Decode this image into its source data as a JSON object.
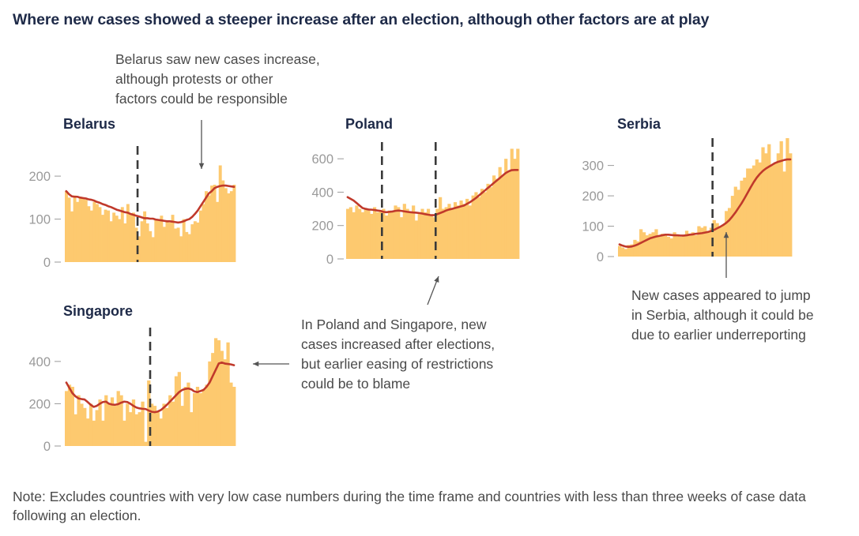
{
  "title": "Where new cases showed a steeper increase after an election, although other factors are at play",
  "note": "Note: Excludes countries with very low case numbers during the time frame and countries with less than three weeks of case data following an election.",
  "annotations": {
    "belarus": [
      "Belarus saw new cases increase,",
      "although protests or other",
      "factors could be responsible"
    ],
    "poland_singapore": [
      "In Poland and Singapore, new",
      "cases increased after elections,",
      "but earlier easing of restrictions",
      "could be to blame"
    ],
    "serbia": [
      "New cases appeared to jump",
      "in Serbia, although it could be",
      "due to earlier underreporting"
    ]
  },
  "colors": {
    "bar": "#fdc96f",
    "line": "#c0392b",
    "election_line": "#3a3a3a",
    "title": "#1e2a48",
    "text": "#4a4a4a",
    "axis": "#9a9a9a"
  },
  "chart_data": [
    {
      "type": "bar",
      "title": "Belarus",
      "ylim": [
        0,
        270
      ],
      "yticks": [
        0,
        100,
        200
      ],
      "grid": false,
      "election_index": [
        26
      ],
      "series": [
        {
          "values": [
            165,
            150,
            118,
            155,
            140,
            152,
            148,
            145,
            130,
            120,
            140,
            135,
            128,
            110,
            122,
            120,
            95,
            115,
            108,
            100,
            128,
            90,
            135,
            110,
            115,
            80,
            60,
            95,
            118,
            90,
            72,
            58,
            100,
            98,
            108,
            82,
            95,
            92,
            110,
            78,
            80,
            60,
            100,
            70,
            65,
            88,
            95,
            92,
            120,
            135,
            165,
            155,
            178,
            180,
            140,
            225,
            190,
            172,
            160,
            165,
            180
          ]
        },
        {
          "values": [
            165,
            158,
            153,
            152,
            152,
            150,
            149,
            148,
            146,
            145,
            143,
            140,
            138,
            135,
            133,
            130,
            128,
            125,
            122,
            120,
            118,
            116,
            115,
            112,
            110,
            108,
            106,
            104,
            102,
            102,
            101,
            101,
            99,
            98,
            97,
            96,
            95,
            95,
            94,
            93,
            92,
            93,
            95,
            98,
            100,
            105,
            112,
            120,
            130,
            140,
            150,
            160,
            165,
            172,
            175,
            177,
            178,
            178,
            177,
            176,
            175
          ]
        }
      ]
    },
    {
      "type": "bar",
      "title": "Poland",
      "ylim": [
        0,
        700
      ],
      "yticks": [
        0,
        200,
        400,
        600
      ],
      "grid": false,
      "election_index": [
        12,
        30
      ],
      "series": [
        {
          "values": [
            300,
            310,
            280,
            320,
            300,
            280,
            300,
            290,
            270,
            310,
            280,
            290,
            300,
            260,
            290,
            280,
            320,
            310,
            250,
            330,
            300,
            280,
            320,
            230,
            270,
            300,
            280,
            300,
            260,
            250,
            300,
            370,
            300,
            310,
            330,
            300,
            340,
            320,
            350,
            330,
            360,
            320,
            380,
            400,
            370,
            420,
            400,
            450,
            430,
            500,
            480,
            550,
            500,
            600,
            520,
            660,
            600,
            660
          ]
        },
        {
          "values": [
            370,
            360,
            350,
            335,
            320,
            305,
            300,
            296,
            295,
            293,
            290,
            288,
            282,
            280,
            282,
            284,
            288,
            290,
            288,
            285,
            282,
            280,
            278,
            277,
            275,
            272,
            268,
            265,
            262,
            262,
            268,
            275,
            282,
            290,
            296,
            300,
            305,
            310,
            315,
            320,
            330,
            340,
            352,
            365,
            380,
            395,
            410,
            425,
            440,
            455,
            470,
            485,
            500,
            515,
            525,
            532,
            533,
            533
          ]
        }
      ]
    },
    {
      "type": "bar",
      "title": "Serbia",
      "ylim": [
        0,
        390
      ],
      "yticks": [
        0,
        100,
        200,
        300
      ],
      "grid": false,
      "election_index": [
        31
      ],
      "series": [
        {
          "values": [
            35,
            30,
            25,
            38,
            40,
            55,
            50,
            90,
            80,
            70,
            75,
            80,
            90,
            70,
            75,
            70,
            65,
            60,
            80,
            70,
            65,
            70,
            85,
            75,
            80,
            70,
            100,
            95,
            100,
            85,
            95,
            120,
            110,
            100,
            105,
            150,
            160,
            200,
            230,
            220,
            250,
            260,
            290,
            290,
            300,
            320,
            310,
            360,
            340,
            370,
            300,
            310,
            340,
            380,
            280,
            390,
            340
          ]
        },
        {
          "values": [
            40,
            36,
            33,
            32,
            33,
            36,
            40,
            45,
            50,
            55,
            60,
            63,
            66,
            68,
            70,
            72,
            72,
            71,
            70,
            70,
            69,
            69,
            70,
            72,
            73,
            75,
            76,
            77,
            79,
            81,
            84,
            88,
            93,
            98,
            104,
            111,
            120,
            132,
            145,
            160,
            175,
            192,
            210,
            228,
            245,
            260,
            272,
            282,
            290,
            296,
            302,
            308,
            312,
            315,
            318,
            320,
            320
          ]
        }
      ]
    },
    {
      "type": "bar",
      "title": "Singapore",
      "ylim": [
        0,
        560
      ],
      "yticks": [
        0,
        200,
        400
      ],
      "grid": false,
      "election_index": [
        28
      ],
      "series": [
        {
          "values": [
            260,
            290,
            280,
            150,
            240,
            200,
            180,
            130,
            200,
            120,
            170,
            220,
            120,
            240,
            200,
            230,
            190,
            260,
            240,
            120,
            200,
            160,
            220,
            150,
            160,
            210,
            20,
            310,
            200,
            190,
            160,
            130,
            200,
            180,
            240,
            210,
            330,
            350,
            190,
            280,
            300,
            160,
            250,
            280,
            250,
            270,
            290,
            400,
            440,
            510,
            500,
            450,
            410,
            490,
            300,
            280
          ]
        },
        {
          "values": [
            300,
            275,
            250,
            235,
            225,
            222,
            220,
            208,
            195,
            185,
            190,
            200,
            208,
            210,
            200,
            196,
            195,
            198,
            205,
            210,
            208,
            200,
            190,
            182,
            178,
            176,
            175,
            168,
            162,
            160,
            163,
            170,
            182,
            195,
            210,
            225,
            240,
            255,
            265,
            270,
            272,
            268,
            258,
            255,
            260,
            265,
            280,
            300,
            330,
            360,
            390,
            395,
            390,
            388,
            386,
            382
          ]
        }
      ]
    }
  ]
}
